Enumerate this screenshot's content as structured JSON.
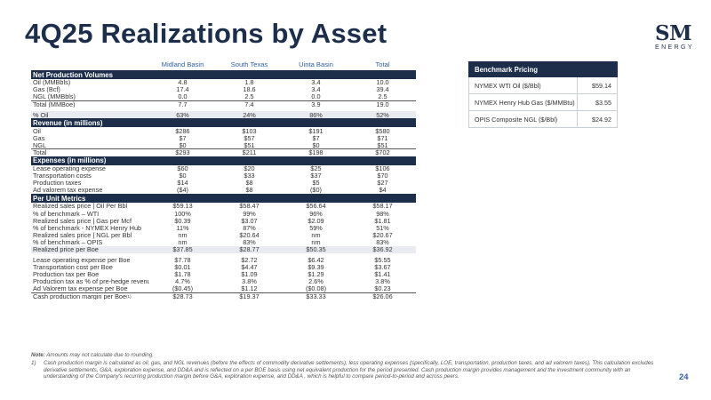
{
  "title": "4Q25 Realizations by Asset",
  "logo": {
    "mark": "SM",
    "word": "ENERGY"
  },
  "columns": [
    "Midland Basin",
    "South Texas",
    "Uinta Basin",
    "Total"
  ],
  "sections": [
    {
      "heading": "Net Production Volumes",
      "rows": [
        {
          "label": "Oil (MMBbls)",
          "values": [
            "4.8",
            "1.8",
            "3.4",
            "10.0"
          ],
          "style": ""
        },
        {
          "label": "Gas (Bcf)",
          "values": [
            "17.4",
            "18.6",
            "3.4",
            "39.4"
          ],
          "style": ""
        },
        {
          "label": "NGL (MMBbls)",
          "values": [
            "0.0",
            "2.5",
            "0.0",
            "2.5"
          ],
          "style": "rule"
        },
        {
          "label": "Total (MMBoe)",
          "values": [
            "7.7",
            "7.4",
            "3.9",
            "19.0"
          ],
          "style": ""
        },
        {
          "label": "",
          "values": [
            "",
            "",
            "",
            ""
          ],
          "style": "gap"
        },
        {
          "label": "% Oil",
          "values": [
            "63%",
            "24%",
            "86%",
            "52%"
          ],
          "style": "shade"
        }
      ]
    },
    {
      "heading": "Revenue (in millions)",
      "rows": [
        {
          "label": "Oil",
          "values": [
            "$286",
            "$103",
            "$191",
            "$580"
          ],
          "style": ""
        },
        {
          "label": "Gas",
          "values": [
            "$7",
            "$57",
            "$7",
            "$71"
          ],
          "style": ""
        },
        {
          "label": "NGL",
          "values": [
            "$0",
            "$51",
            "$0",
            "$51"
          ],
          "style": "rule"
        },
        {
          "label": "Total",
          "values": [
            "$293",
            "$211",
            "$198",
            "$702"
          ],
          "style": ""
        }
      ]
    },
    {
      "heading": "Expenses (in millions)",
      "rows": [
        {
          "label": "Lease operating expense",
          "values": [
            "$60",
            "$20",
            "$25",
            "$106"
          ],
          "style": ""
        },
        {
          "label": "Transportation costs",
          "values": [
            "$0",
            "$33",
            "$37",
            "$70"
          ],
          "style": ""
        },
        {
          "label": "Production taxes",
          "values": [
            "$14",
            "$8",
            "$5",
            "$27"
          ],
          "style": ""
        },
        {
          "label": "Ad valorem tax expense",
          "values": [
            "($4)",
            "$8",
            "($0)",
            "$4"
          ],
          "style": ""
        }
      ]
    },
    {
      "heading": "Per Unit Metrics",
      "rows": [
        {
          "label": "Realized sales price | Oil Per Bbl",
          "values": [
            "$59.13",
            "$58.47",
            "$56.64",
            "$58.17"
          ],
          "style": ""
        },
        {
          "label": "% of benchmark – WTI",
          "values": [
            "100%",
            "99%",
            "96%",
            "98%"
          ],
          "style": ""
        },
        {
          "label": "Realized sales price | Gas per Mcf",
          "values": [
            "$0.39",
            "$3.07",
            "$2.09",
            "$1.81"
          ],
          "style": ""
        },
        {
          "label": "% of benchmark - NYMEX Henry Hub",
          "values": [
            "11%",
            "87%",
            "59%",
            "51%"
          ],
          "style": ""
        },
        {
          "label": "Realized sales price | NGL per Bbl",
          "values": [
            "nm",
            "$20.64",
            "nm",
            "$20.67"
          ],
          "style": ""
        },
        {
          "label": "% of benchmark – OPIS",
          "values": [
            "nm",
            "83%",
            "nm",
            "83%"
          ],
          "style": ""
        },
        {
          "label": "Realized price per Boe",
          "values": [
            "$37.85",
            "$28.77",
            "$50.35",
            "$36.92"
          ],
          "style": "shade"
        },
        {
          "label": "",
          "values": [
            "",
            "",
            "",
            ""
          ],
          "style": "gap"
        },
        {
          "label": "Lease operating expense per Boe",
          "values": [
            "$7.78",
            "$2.72",
            "$6.42",
            "$5.55"
          ],
          "style": ""
        },
        {
          "label": "Transportation cost per Boe",
          "values": [
            "$0.01",
            "$4.47",
            "$9.39",
            "$3.67"
          ],
          "style": ""
        },
        {
          "label": "Production tax per Boe",
          "values": [
            "$1.78",
            "$1.09",
            "$1.29",
            "$1.41"
          ],
          "style": ""
        },
        {
          "label": "Production tax as % of pre-hedge revenue",
          "values": [
            "4.7%",
            "3.8%",
            "2.6%",
            "3.8%"
          ],
          "style": ""
        },
        {
          "label": "Ad Valorem tax expense per Boe",
          "values": [
            "($0.45)",
            "$1.12",
            "($0.08)",
            "$0.23"
          ],
          "style": "rule"
        },
        {
          "label": "Cash production margin per Boe",
          "sup": "(1)",
          "values": [
            "$28.73",
            "$19.37",
            "$33.33",
            "$26.06"
          ],
          "style": ""
        }
      ]
    }
  ],
  "benchmark": {
    "heading": "Benchmark Pricing",
    "rows": [
      {
        "label": "NYMEX WTI Oil ($/Bbl)",
        "value": "$59.14"
      },
      {
        "label": "NYMEX Henry Hub Gas ($/MMBtu)",
        "value": "$3.55"
      },
      {
        "label": "OPIS Composite NGL ($/Bbl)",
        "value": "$24.92"
      }
    ]
  },
  "notes": {
    "label": "Note:",
    "text": " Amounts may not calculate due to rounding.",
    "footnote_num": "1)",
    "footnote": "Cash production margin is calculated as oil, gas, and NGL revenues (before the effects of commodity derivative settlements), less operating expenses (specifically, LOE, transportation, production taxes, and ad valorem taxes). This calculation excludes derivative settlements, G&A, exploration expense, and DD&A and is reflected on a per BOE basis using net equivalent production for the period presented. Cash production margin provides management and the investment community with an understanding of the Company's recurring production margin before G&A, exploration expense, and DD&A , which is helpful to compare period-to-period and across peers."
  },
  "page_number": "24"
}
